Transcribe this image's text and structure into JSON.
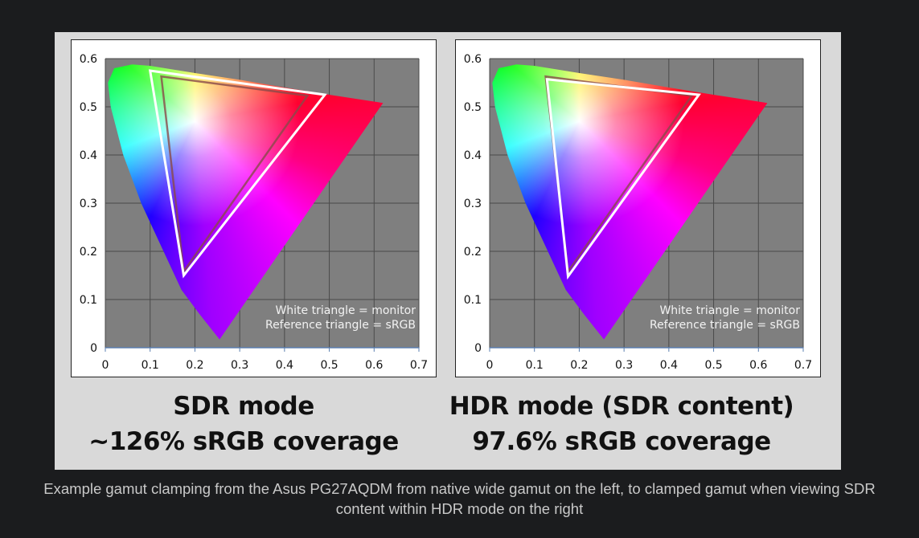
{
  "chart_data": [
    {
      "type": "scatter",
      "title": "SDR mode",
      "subtitle": "~126% sRGB coverage",
      "xlim": [
        0,
        0.7
      ],
      "ylim": [
        0,
        0.6
      ],
      "xticks": [
        "0",
        "0.1",
        "0.2",
        "0.3",
        "0.4",
        "0.5",
        "0.6",
        "0.7"
      ],
      "yticks": [
        "0",
        "0.1",
        "0.2",
        "0.3",
        "0.4",
        "0.5",
        "0.6"
      ],
      "grid": true,
      "legend": [
        "White triangle = monitor",
        "Reference triangle = sRGB"
      ],
      "legend_position": "bottom-right",
      "monitor_triangle": [
        [
          0.49,
          0.525
        ],
        [
          0.1,
          0.575
        ],
        [
          0.175,
          0.15
        ]
      ],
      "srgb_triangle": [
        [
          0.451,
          0.523
        ],
        [
          0.125,
          0.563
        ],
        [
          0.175,
          0.158
        ]
      ]
    },
    {
      "type": "scatter",
      "title": "HDR mode (SDR content)",
      "subtitle": "97.6% sRGB coverage",
      "xlim": [
        0,
        0.7
      ],
      "ylim": [
        0,
        0.6
      ],
      "xticks": [
        "0",
        "0.1",
        "0.2",
        "0.3",
        "0.4",
        "0.5",
        "0.6",
        "0.7"
      ],
      "yticks": [
        "0",
        "0.1",
        "0.2",
        "0.3",
        "0.4",
        "0.5",
        "0.6"
      ],
      "grid": true,
      "legend": [
        "White triangle = monitor",
        "Reference triangle = sRGB"
      ],
      "legend_position": "bottom-right",
      "monitor_triangle": [
        [
          0.467,
          0.525
        ],
        [
          0.128,
          0.557
        ],
        [
          0.175,
          0.148
        ]
      ],
      "srgb_triangle": [
        [
          0.451,
          0.523
        ],
        [
          0.125,
          0.563
        ],
        [
          0.175,
          0.158
        ]
      ]
    }
  ],
  "spectral_locus": [
    [
      0.255,
      0.017
    ],
    [
      0.21,
      0.07
    ],
    [
      0.17,
      0.12
    ],
    [
      0.13,
      0.2
    ],
    [
      0.08,
      0.3
    ],
    [
      0.04,
      0.4
    ],
    [
      0.012,
      0.5
    ],
    [
      0.006,
      0.55
    ],
    [
      0.02,
      0.58
    ],
    [
      0.06,
      0.588
    ],
    [
      0.1,
      0.585
    ],
    [
      0.2,
      0.57
    ],
    [
      0.3,
      0.556
    ],
    [
      0.4,
      0.54
    ],
    [
      0.5,
      0.525
    ],
    [
      0.62,
      0.508
    ]
  ],
  "colors": {
    "plot_bg": "#7f7f7f",
    "grid": "#4a4a4a",
    "panel": "#d9d9d9",
    "page_bg": "#1b1c1e",
    "caption": "#c9c9c9"
  },
  "caption": "Example gamut clamping from the Asus PG27AQDM from native wide gamut on the left, to clamped gamut when viewing SDR content within HDR mode on the right"
}
